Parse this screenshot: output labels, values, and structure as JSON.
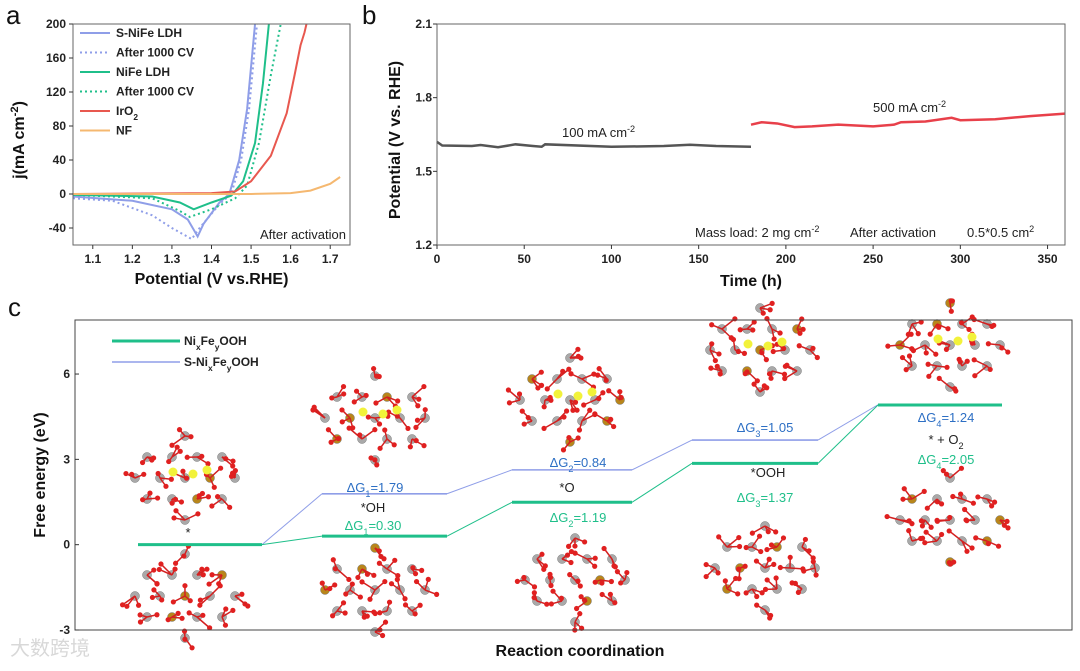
{
  "colors": {
    "s_nife": "#8f9ee8",
    "nife": "#1fbf8a",
    "iro2": "#e8584f",
    "nf": "#f5b870",
    "stab_100": "#555555",
    "stab_500": "#e8404a",
    "dg_blue": "#2d6fc4",
    "dg_green": "#1fbf8a"
  },
  "chart_data": [
    {
      "panel": "a",
      "type": "line",
      "xlabel": "Potential (V vs.RHE)",
      "ylabel": {
        "main": "j(mA cm",
        "sup": "-2",
        "end": ")"
      },
      "xlim": [
        1.05,
        1.75
      ],
      "ylim": [
        -60,
        200
      ],
      "xticks": [
        "1.1",
        "1.2",
        "1.3",
        "1.4",
        "1.5",
        "1.6",
        "1.7"
      ],
      "yticks": [
        "-40",
        "0",
        "40",
        "80",
        "120",
        "160",
        "200"
      ],
      "annotation": "After activation",
      "series": [
        {
          "name": "S-NiFe LDH",
          "style": "solid",
          "color": "#8f9ee8",
          "points": [
            [
              1.05,
              -3
            ],
            [
              1.2,
              -8
            ],
            [
              1.3,
              -18
            ],
            [
              1.34,
              -30
            ],
            [
              1.365,
              -50
            ],
            [
              1.38,
              -35
            ],
            [
              1.42,
              -10
            ],
            [
              1.445,
              0
            ],
            [
              1.47,
              40
            ],
            [
              1.49,
              100
            ],
            [
              1.51,
              200
            ]
          ]
        },
        {
          "name": "After 1000 CV",
          "style": "dotted",
          "color": "#8f9ee8",
          "points": [
            [
              1.05,
              -5
            ],
            [
              1.15,
              -8
            ],
            [
              1.25,
              -25
            ],
            [
              1.3,
              -40
            ],
            [
              1.35,
              -53
            ],
            [
              1.37,
              -40
            ],
            [
              1.42,
              -12
            ],
            [
              1.45,
              0
            ],
            [
              1.475,
              40
            ],
            [
              1.495,
              100
            ],
            [
              1.515,
              200
            ]
          ]
        },
        {
          "name": "NiFe LDH",
          "style": "solid",
          "color": "#1fbf8a",
          "points": [
            [
              1.05,
              -1
            ],
            [
              1.25,
              -3
            ],
            [
              1.32,
              -10
            ],
            [
              1.355,
              -18
            ],
            [
              1.4,
              -10
            ],
            [
              1.45,
              -2
            ],
            [
              1.48,
              15
            ],
            [
              1.51,
              60
            ],
            [
              1.53,
              130
            ],
            [
              1.545,
              200
            ]
          ]
        },
        {
          "name": "After 1000 CV",
          "style": "dotted",
          "color": "#1fbf8a",
          "points": [
            [
              1.05,
              -1
            ],
            [
              1.25,
              -5
            ],
            [
              1.32,
              -20
            ],
            [
              1.345,
              -27
            ],
            [
              1.4,
              -18
            ],
            [
              1.46,
              -5
            ],
            [
              1.49,
              10
            ],
            [
              1.52,
              60
            ],
            [
              1.55,
              140
            ],
            [
              1.575,
              200
            ]
          ]
        },
        {
          "name": "IrO",
          "sub": "2",
          "style": "solid",
          "color": "#e8584f",
          "points": [
            [
              1.05,
              0
            ],
            [
              1.4,
              1
            ],
            [
              1.46,
              3
            ],
            [
              1.5,
              15
            ],
            [
              1.55,
              45
            ],
            [
              1.59,
              95
            ],
            [
              1.61,
              140
            ],
            [
              1.625,
              175
            ],
            [
              1.635,
              190
            ],
            [
              1.64,
              200
            ]
          ]
        },
        {
          "name": "NF",
          "style": "solid",
          "color": "#f5b870",
          "points": [
            [
              1.05,
              0
            ],
            [
              1.5,
              0
            ],
            [
              1.6,
              1
            ],
            [
              1.65,
              4
            ],
            [
              1.7,
              12
            ],
            [
              1.725,
              20
            ]
          ]
        }
      ]
    },
    {
      "panel": "b",
      "type": "line",
      "xlabel": "Time (h)",
      "ylabel": "Potential (V vs. RHE)",
      "xlim": [
        0,
        360
      ],
      "ylim": [
        1.2,
        2.1
      ],
      "xticks": [
        "0",
        "50",
        "100",
        "150",
        "200",
        "250",
        "300",
        "350"
      ],
      "yticks": [
        "1.2",
        "1.5",
        "1.8",
        "2.1"
      ],
      "annotations": {
        "mass": {
          "main": "Mass load: 2 mg cm",
          "sup": "-2"
        },
        "activation": "After activation",
        "area": {
          "main": "0.5*0.5 cm",
          "sup": "2"
        }
      },
      "series": [
        {
          "name": {
            "main": "100 mA cm",
            "sup": "-2"
          },
          "color": "#555555",
          "points": [
            [
              0,
              1.62
            ],
            [
              3,
              1.605
            ],
            [
              20,
              1.603
            ],
            [
              25,
              1.607
            ],
            [
              35,
              1.598
            ],
            [
              45,
              1.61
            ],
            [
              55,
              1.603
            ],
            [
              60,
              1.6
            ],
            [
              62,
              1.61
            ],
            [
              100,
              1.6
            ],
            [
              130,
              1.603
            ],
            [
              145,
              1.608
            ],
            [
              160,
              1.603
            ],
            [
              180,
              1.6
            ]
          ]
        },
        {
          "name": {
            "main": "500 mA cm",
            "sup": "-2"
          },
          "color": "#e8404a",
          "points": [
            [
              180,
              1.69
            ],
            [
              186,
              1.7
            ],
            [
              195,
              1.695
            ],
            [
              205,
              1.68
            ],
            [
              215,
              1.683
            ],
            [
              230,
              1.69
            ],
            [
              250,
              1.683
            ],
            [
              262,
              1.69
            ],
            [
              266,
              1.7
            ],
            [
              280,
              1.703
            ],
            [
              295,
              1.718
            ],
            [
              300,
              1.708
            ],
            [
              320,
              1.712
            ],
            [
              340,
              1.725
            ],
            [
              360,
              1.735
            ]
          ]
        }
      ]
    },
    {
      "panel": "c",
      "type": "line",
      "xlabel": "Reaction coordination",
      "ylabel": "Free energy (eV)",
      "ylim": [
        -3,
        7.9
      ],
      "yticks": [
        "-3",
        "0",
        "3",
        "6"
      ],
      "states": [
        "*",
        "*OH",
        "*O",
        "*OOH",
        {
          "main": "* + O",
          "sub": "2"
        }
      ],
      "series": [
        {
          "name": {
            "a": "Ni",
            "s1": "x",
            "b": "Fe",
            "s2": "y",
            "c": "OOH"
          },
          "color": "#1fbf8a",
          "levels": [
            0,
            0.3,
            1.49,
            2.86,
            4.91
          ],
          "dg": [
            {
              "step": "1",
              "value": "0.30"
            },
            {
              "step": "2",
              "value": "1.19"
            },
            {
              "step": "3",
              "value": "1.37"
            },
            {
              "step": "4",
              "value": "2.05"
            }
          ]
        },
        {
          "name": {
            "a": "S-Ni",
            "s1": "x",
            "b": "Fe",
            "s2": "y",
            "c": "OOH"
          },
          "color": "#8f9ee8",
          "levels": [
            0,
            1.79,
            2.63,
            3.68,
            4.92
          ],
          "dg": [
            {
              "step": "1",
              "value": "1.79"
            },
            {
              "step": "2",
              "value": "0.84"
            },
            {
              "step": "3",
              "value": "1.05"
            },
            {
              "step": "4",
              "value": "1.24"
            }
          ]
        }
      ]
    }
  ],
  "panel_labels": [
    "a",
    "b",
    "c"
  ],
  "watermark": "大数跨境"
}
